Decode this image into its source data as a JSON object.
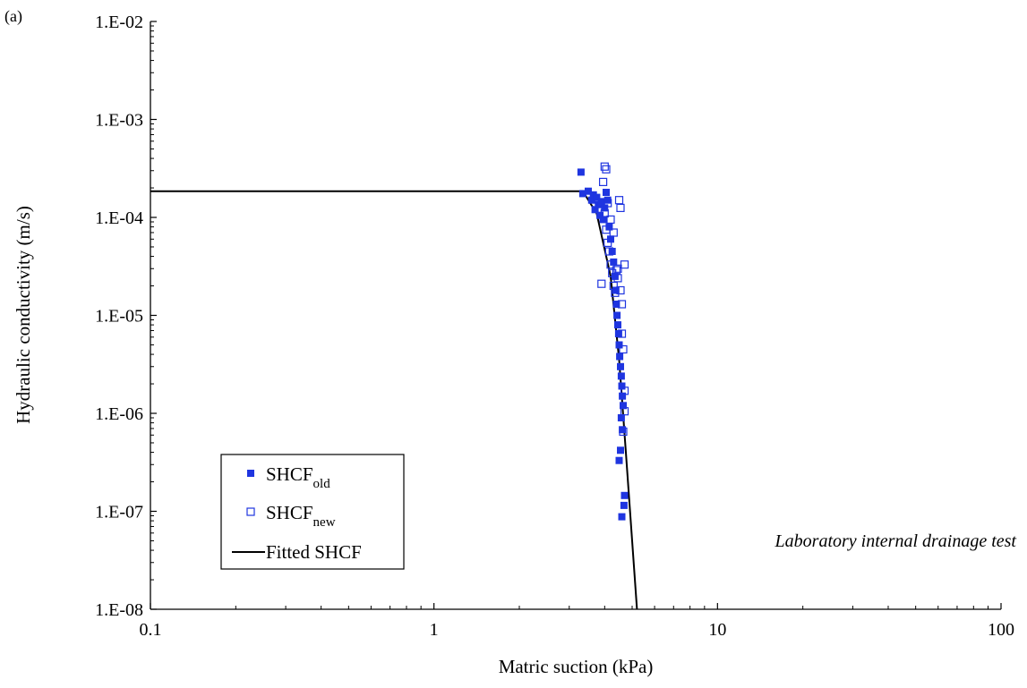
{
  "panel_label": "(a)",
  "annotation": "Laboratory internal drainage test",
  "colors": {
    "series": "#1f35e0",
    "fit": "#000000",
    "axis": "#000000"
  },
  "legend": {
    "placement": "bottom-left",
    "items": [
      {
        "base": "SHCF",
        "sub": "old",
        "marker": "filled-square"
      },
      {
        "base": "SHCF",
        "sub": "new",
        "marker": "open-square"
      },
      {
        "label": "Fitted SHCF",
        "marker": "line"
      }
    ]
  },
  "chart_data": {
    "type": "scatter",
    "xlabel": "Matric suction (kPa)",
    "ylabel": "Hydraulic conductivity (m/s)",
    "xscale": "log",
    "yscale": "log",
    "xlim": [
      0.1,
      100
    ],
    "ylim": [
      1e-08,
      0.01
    ],
    "grid": false,
    "x_ticks": [
      {
        "value": 0.1,
        "label": "0.1"
      },
      {
        "value": 1,
        "label": "1"
      },
      {
        "value": 10,
        "label": "10"
      },
      {
        "value": 100,
        "label": "100"
      }
    ],
    "y_ticks": [
      {
        "value": 1e-08,
        "label": "1.E-08"
      },
      {
        "value": 1e-07,
        "label": "1.E-07"
      },
      {
        "value": 1e-06,
        "label": "1.E-06"
      },
      {
        "value": 1e-05,
        "label": "1.E-05"
      },
      {
        "value": 0.0001,
        "label": "1.E-04"
      },
      {
        "value": 0.001,
        "label": "1.E-03"
      },
      {
        "value": 0.01,
        "label": "1.E-02"
      }
    ],
    "series": [
      {
        "name": "SHCF_old",
        "marker": "filled-square",
        "points": [
          [
            3.3,
            0.00029
          ],
          [
            3.35,
            0.000175
          ],
          [
            3.5,
            0.000185
          ],
          [
            3.6,
            0.00015
          ],
          [
            3.65,
            0.00017
          ],
          [
            3.7,
            0.00012
          ],
          [
            3.75,
            0.00016
          ],
          [
            3.8,
            0.000135
          ],
          [
            3.85,
            0.000105
          ],
          [
            3.9,
            0.000145
          ],
          [
            3.95,
            9.5e-05
          ],
          [
            4.0,
            0.000125
          ],
          [
            4.05,
            0.00018
          ],
          [
            4.1,
            0.00015
          ],
          [
            4.15,
            8e-05
          ],
          [
            4.2,
            6e-05
          ],
          [
            4.25,
            4.5e-05
          ],
          [
            4.3,
            3.5e-05
          ],
          [
            4.35,
            2.5e-05
          ],
          [
            4.38,
            1.8e-05
          ],
          [
            4.4,
            1.3e-05
          ],
          [
            4.42,
            1e-05
          ],
          [
            4.45,
            8e-06
          ],
          [
            4.48,
            6.5e-06
          ],
          [
            4.5,
            5e-06
          ],
          [
            4.52,
            3.8e-06
          ],
          [
            4.55,
            3e-06
          ],
          [
            4.58,
            2.4e-06
          ],
          [
            4.6,
            1.9e-06
          ],
          [
            4.62,
            1.5e-06
          ],
          [
            4.65,
            1.2e-06
          ],
          [
            4.58,
            9e-07
          ],
          [
            4.62,
            6.8e-07
          ],
          [
            4.55,
            4.2e-07
          ],
          [
            4.5,
            3.3e-07
          ],
          [
            4.7,
            1.45e-07
          ],
          [
            4.68,
            1.15e-07
          ],
          [
            4.6,
            8.8e-08
          ]
        ]
      },
      {
        "name": "SHCF_new",
        "marker": "open-square",
        "points": [
          [
            3.9,
            2.1e-05
          ],
          [
            3.95,
            0.00023
          ],
          [
            4.0,
            0.00033
          ],
          [
            4.05,
            0.00031
          ],
          [
            4.1,
            0.00014
          ],
          [
            4.0,
            0.00011
          ],
          [
            4.05,
            7.5e-05
          ],
          [
            4.1,
            5.5e-05
          ],
          [
            4.15,
            4.5e-05
          ],
          [
            4.2,
            3.3e-05
          ],
          [
            4.25,
            2.7e-05
          ],
          [
            4.3,
            2e-05
          ],
          [
            4.35,
            1.7e-05
          ],
          [
            4.4,
            2.9e-05
          ],
          [
            4.45,
            2.4e-05
          ],
          [
            4.5,
            0.00015
          ],
          [
            4.55,
            0.000125
          ],
          [
            4.7,
            3.3e-05
          ],
          [
            4.55,
            1.8e-05
          ],
          [
            4.6,
            1.3e-05
          ],
          [
            4.6,
            6.5e-06
          ],
          [
            4.65,
            4.5e-06
          ],
          [
            4.7,
            1.7e-06
          ],
          [
            4.7,
            1.05e-06
          ],
          [
            4.65,
            6.5e-07
          ],
          [
            4.3,
            7e-05
          ],
          [
            4.2,
            9.5e-05
          ],
          [
            4.45,
            3e-05
          ]
        ]
      },
      {
        "name": "Fitted SHCF",
        "marker": "line",
        "points": [
          [
            0.1,
            0.000185
          ],
          [
            3.35,
            0.000185
          ],
          [
            3.75,
            0.00011
          ],
          [
            4.2,
            2.5e-05
          ],
          [
            4.5,
            3.5e-06
          ],
          [
            4.75,
            4e-07
          ],
          [
            5.0,
            5e-08
          ],
          [
            5.2,
            1e-08
          ]
        ]
      }
    ]
  }
}
